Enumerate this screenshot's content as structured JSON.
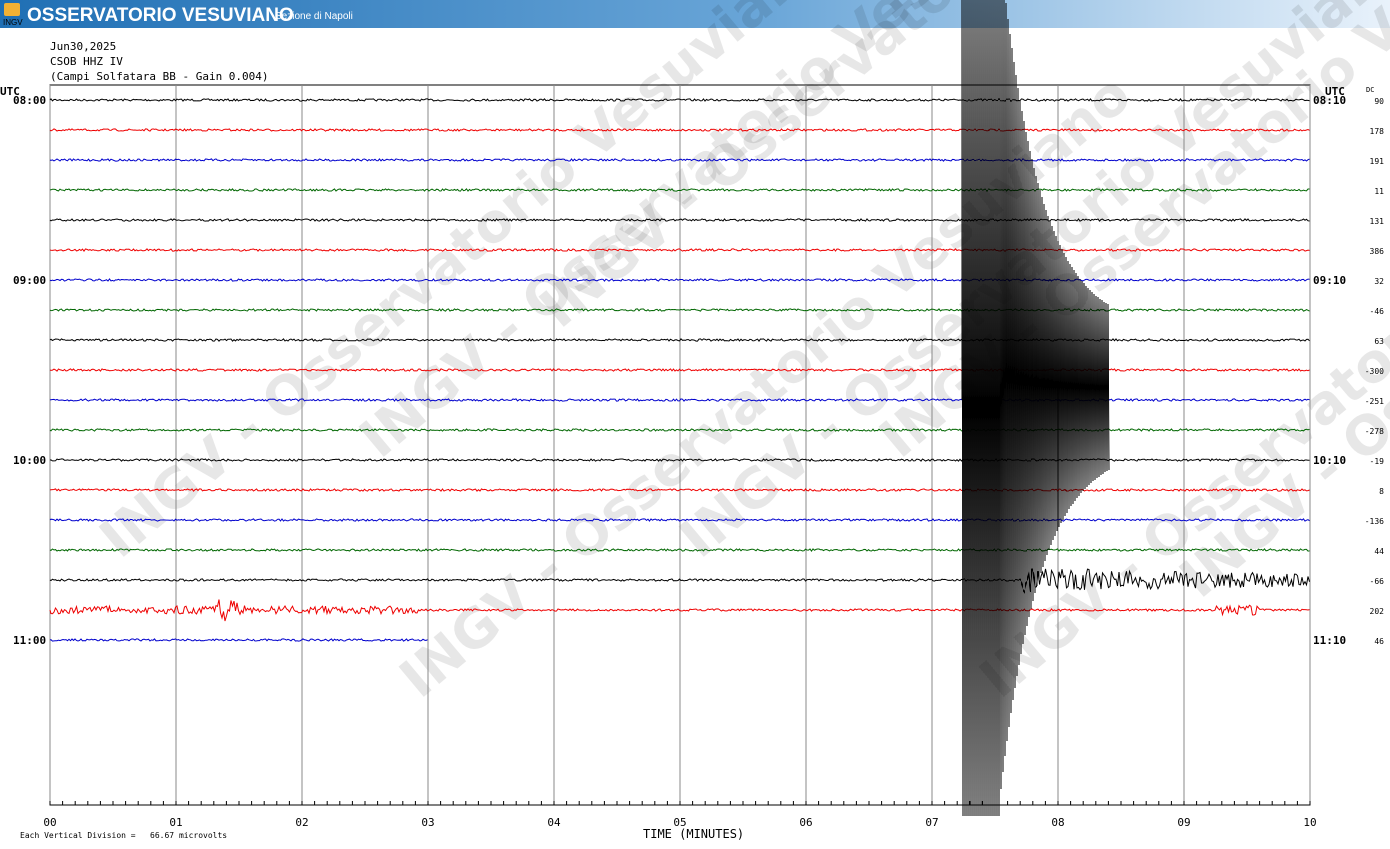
{
  "header": {
    "logo_text": "INGV",
    "title": "OSSERVATORIO VESUVIANO",
    "subtitle": "Sezione di Napoli"
  },
  "info": {
    "date": "Jun30,2025",
    "station": "CSOB HHZ IV",
    "description": "(Campi Solfatara BB  - Gain 0.004)"
  },
  "left_axis": {
    "label": "UTC",
    "times": [
      "08:00",
      "09:00",
      "10:00",
      "11:00"
    ]
  },
  "right_axis": {
    "label": "UTC",
    "times": [
      "08:10",
      "09:10",
      "10:10",
      "11:10"
    ],
    "dc_label": "DC"
  },
  "dc_values": [
    "90",
    "178",
    "191",
    "11",
    "131",
    "386",
    "32",
    "-46",
    "63",
    "-300",
    "-251",
    "-278",
    "-19",
    "8",
    "-136",
    "44",
    "-66",
    "202",
    "46"
  ],
  "x_axis": {
    "ticks": [
      "00",
      "01",
      "02",
      "03",
      "04",
      "05",
      "06",
      "07",
      "08",
      "09",
      "10"
    ],
    "label": "TIME (MINUTES)"
  },
  "footer": {
    "note": "Each Vertical Division =   66.67 microvolts"
  },
  "watermark": "INGV - Osservatorio Vesuviano"
}
